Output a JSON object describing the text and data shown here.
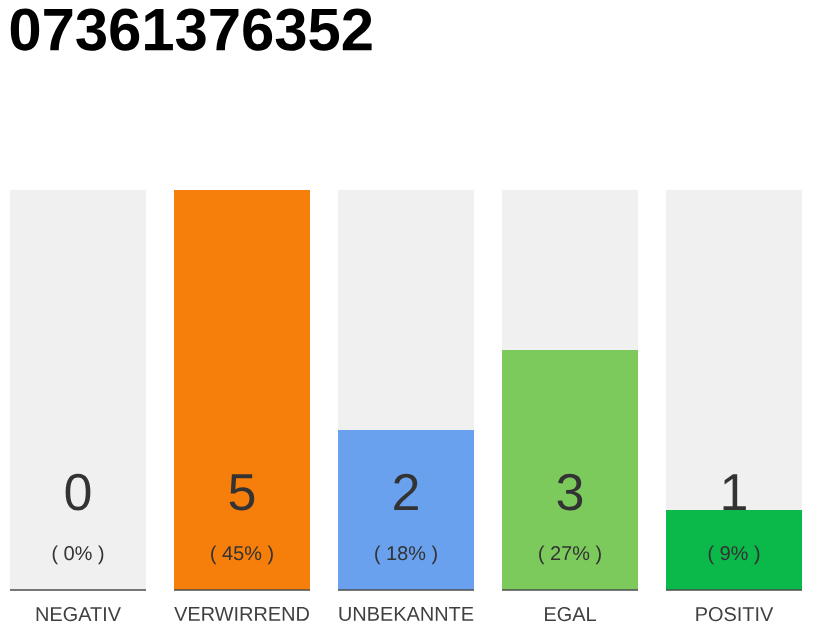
{
  "chart_data": {
    "type": "bar",
    "title": "07361376352",
    "categories": [
      "NEGATIV",
      "VERWIRREND",
      "UNBEKANNTE",
      "EGAL",
      "POSITIV"
    ],
    "values": [
      0,
      5,
      2,
      3,
      1
    ],
    "colors": [
      "#c8c8c8",
      "#f57f0a",
      "#6aa1ef",
      "#7dca5c",
      "#0bb84a"
    ],
    "data_labels": true,
    "bands": [
      {
        "axis": "y",
        "from": 0,
        "to": 5,
        "color": "#f0f0f0"
      }
    ],
    "annotations": [
      "( 0% )",
      "( 45% )",
      "( 18% )",
      "( 27% )",
      "( 9% )"
    ]
  }
}
